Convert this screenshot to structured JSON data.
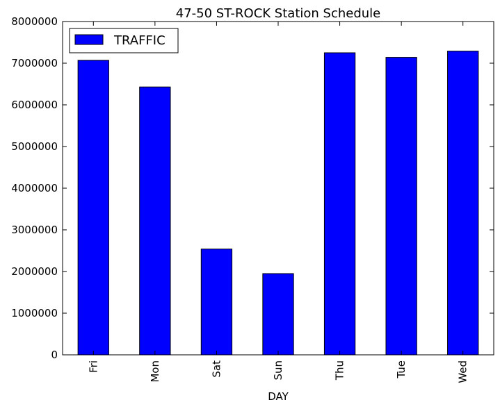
{
  "chart_data": {
    "type": "bar",
    "title": "47-50 ST-ROCK Station Schedule",
    "xlabel": "DAY",
    "ylabel": "",
    "categories": [
      "Fri",
      "Mon",
      "Sat",
      "Sun",
      "Thu",
      "Tue",
      "Wed"
    ],
    "series": [
      {
        "name": "TRAFFIC",
        "values": [
          7070000,
          6430000,
          2540000,
          1950000,
          7250000,
          7140000,
          7290000
        ]
      }
    ],
    "ylim": [
      0,
      8000000
    ],
    "yticks": [
      "0",
      "1000000",
      "2000000",
      "3000000",
      "4000000",
      "5000000",
      "6000000",
      "7000000",
      "8000000"
    ],
    "grid": false,
    "legend_position": "top-left",
    "colors": {
      "bar": "#0000ff",
      "edge": "#000000"
    }
  }
}
